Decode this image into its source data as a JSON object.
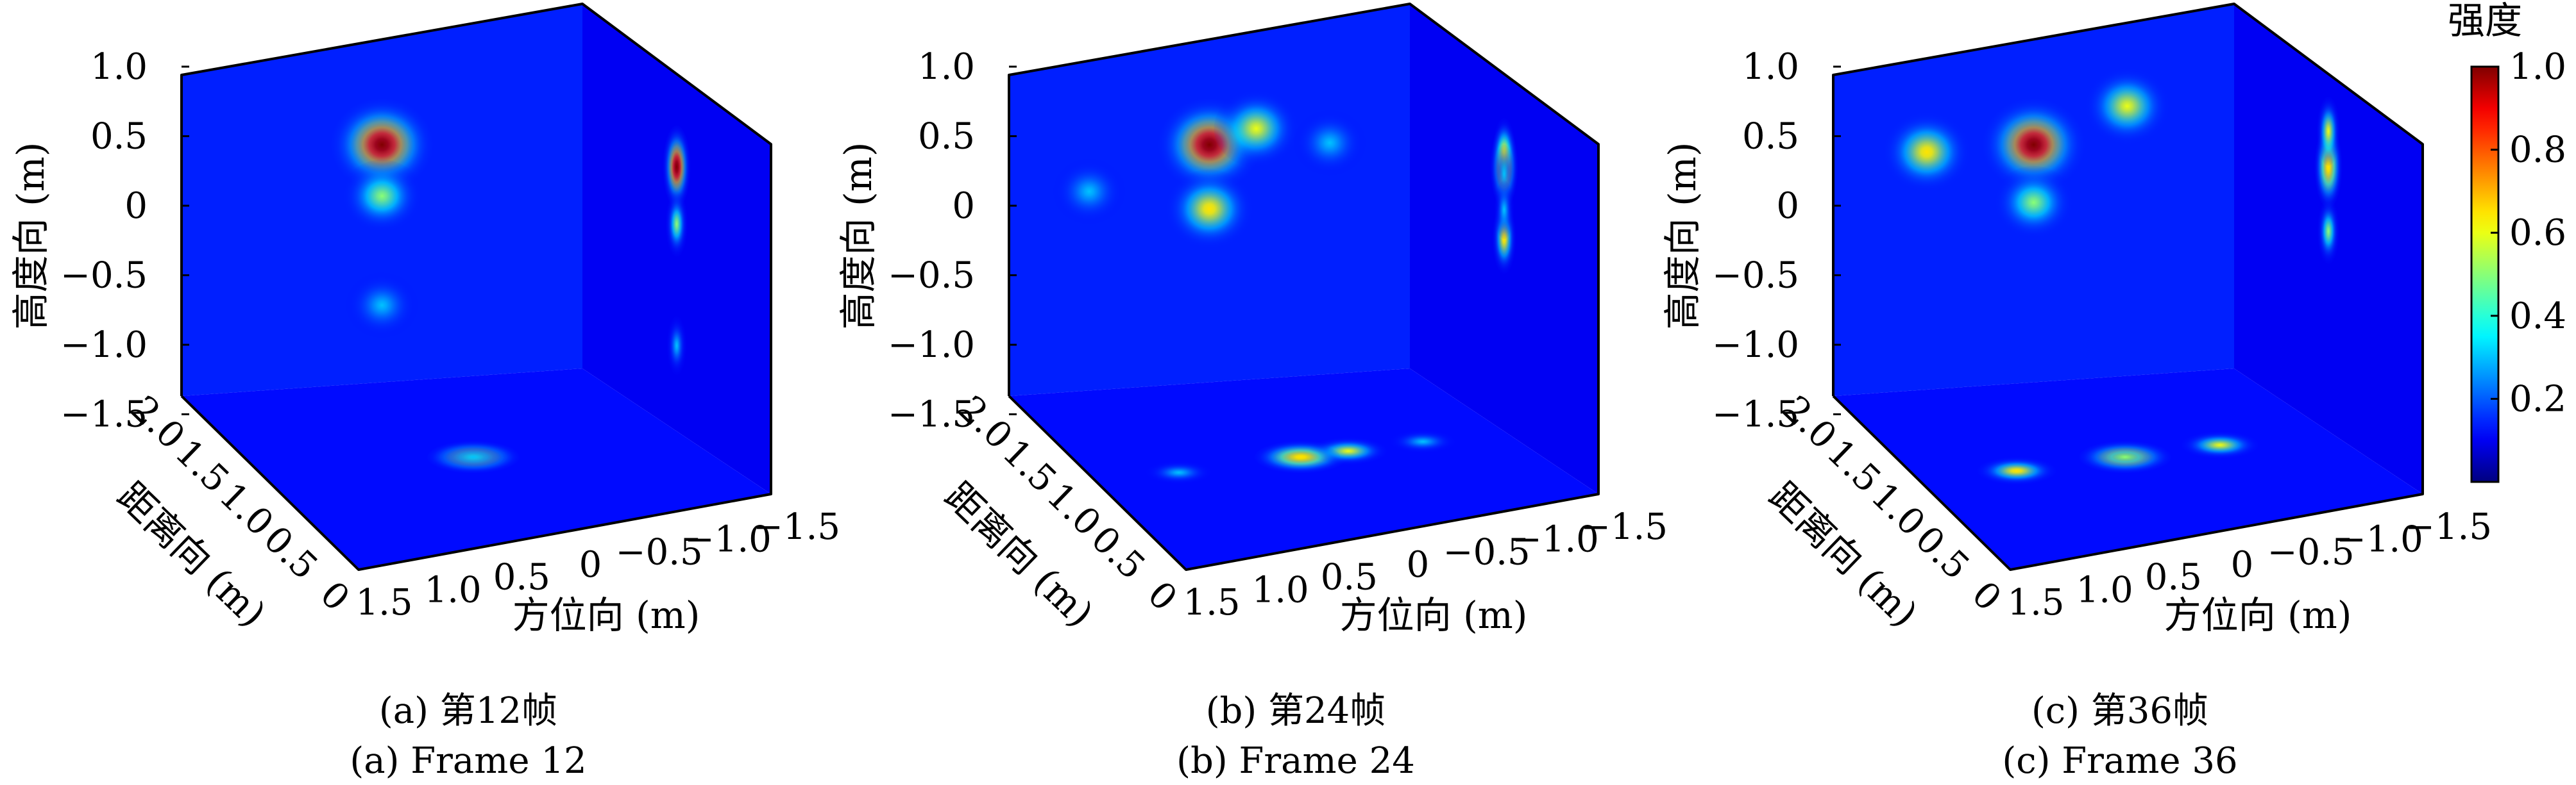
{
  "chart_data": [
    {
      "type": "heatmap",
      "caption_cn": "(a) 第12帧",
      "caption_en": "(a) Frame 12",
      "zlabel": "高度向 (m)",
      "ylabel": "距离向 (m)",
      "xlabel": "方位向 (m)",
      "z_ticks": [
        "1.0",
        "0.5",
        "0",
        "−0.5",
        "−1.0",
        "−1.5"
      ],
      "y_ticks": [
        "2.0",
        "1.5",
        "1.0",
        "0.5",
        "0"
      ],
      "x_ticks": [
        "1.5",
        "1.0",
        "0.5",
        "0",
        "−0.5",
        "−1.0",
        "−1.5"
      ],
      "zlim": [
        -1.5,
        1.0
      ],
      "ylim": [
        0,
        2.0
      ],
      "xlim": [
        1.5,
        -1.5
      ],
      "targets": [
        {
          "x": 0.0,
          "y": 1.0,
          "z": 0.35,
          "intensity": 1.0
        },
        {
          "x": 0.0,
          "y": 1.0,
          "z": -0.05,
          "intensity": 0.5
        },
        {
          "x": 0.0,
          "y": 1.0,
          "z": -0.9,
          "intensity": 0.3
        }
      ]
    },
    {
      "type": "heatmap",
      "caption_cn": "(b) 第24帧",
      "caption_en": "(b) Frame 24",
      "zlabel": "高度向 (m)",
      "ylabel": "距离向 (m)",
      "xlabel": "方位向 (m)",
      "z_ticks": [
        "1.0",
        "0.5",
        "0",
        "−0.5",
        "−1.0",
        "−1.5"
      ],
      "y_ticks": [
        "2.0",
        "1.5",
        "1.0",
        "0.5",
        "0"
      ],
      "x_ticks": [
        "1.5",
        "1.0",
        "0.5",
        "0",
        "−0.5",
        "−1.0",
        "−1.5"
      ],
      "zlim": [
        -1.5,
        1.0
      ],
      "ylim": [
        0,
        2.0
      ],
      "xlim": [
        1.5,
        -1.5
      ],
      "targets": [
        {
          "x": 0.0,
          "y": 1.0,
          "z": 0.35,
          "intensity": 1.0
        },
        {
          "x": -0.35,
          "y": 1.0,
          "z": 0.45,
          "intensity": 0.6
        },
        {
          "x": 0.0,
          "y": 1.0,
          "z": -0.15,
          "intensity": 0.65
        },
        {
          "x": -0.9,
          "y": 1.0,
          "z": 0.3,
          "intensity": 0.3
        },
        {
          "x": 0.9,
          "y": 1.0,
          "z": 0.05,
          "intensity": 0.3
        }
      ]
    },
    {
      "type": "heatmap",
      "caption_cn": "(c) 第36帧",
      "caption_en": "(c) Frame 36",
      "zlabel": "高度向 (m)",
      "ylabel": "距离向 (m)",
      "xlabel": "方位向 (m)",
      "z_ticks": [
        "1.0",
        "0.5",
        "0",
        "−0.5",
        "−1.0",
        "−1.5"
      ],
      "y_ticks": [
        "2.0",
        "1.5",
        "1.0",
        "0.5",
        "0"
      ],
      "x_ticks": [
        "1.5",
        "1.0",
        "0.5",
        "0",
        "−0.5",
        "−1.0",
        "−1.5"
      ],
      "zlim": [
        -1.5,
        1.0
      ],
      "ylim": [
        0,
        2.0
      ],
      "xlim": [
        1.5,
        -1.5
      ],
      "targets": [
        {
          "x": 0.0,
          "y": 1.0,
          "z": 0.35,
          "intensity": 1.0
        },
        {
          "x": 0.8,
          "y": 1.0,
          "z": 0.35,
          "intensity": 0.65
        },
        {
          "x": -0.7,
          "y": 1.0,
          "z": 0.6,
          "intensity": 0.6
        },
        {
          "x": 0.0,
          "y": 1.0,
          "z": -0.1,
          "intensity": 0.5
        }
      ]
    }
  ],
  "colorbar": {
    "title": "强度",
    "ticks": [
      "1.0",
      "0.8",
      "0.6",
      "0.4",
      "0.2"
    ],
    "tick_values": [
      1.0,
      0.8,
      0.6,
      0.4,
      0.2
    ],
    "range": [
      0.0,
      1.0
    ],
    "colormap": "jet",
    "colors": [
      "#00007f",
      "#0000ff",
      "#00ffff",
      "#ffff00",
      "#ff0000",
      "#7f0000"
    ]
  }
}
